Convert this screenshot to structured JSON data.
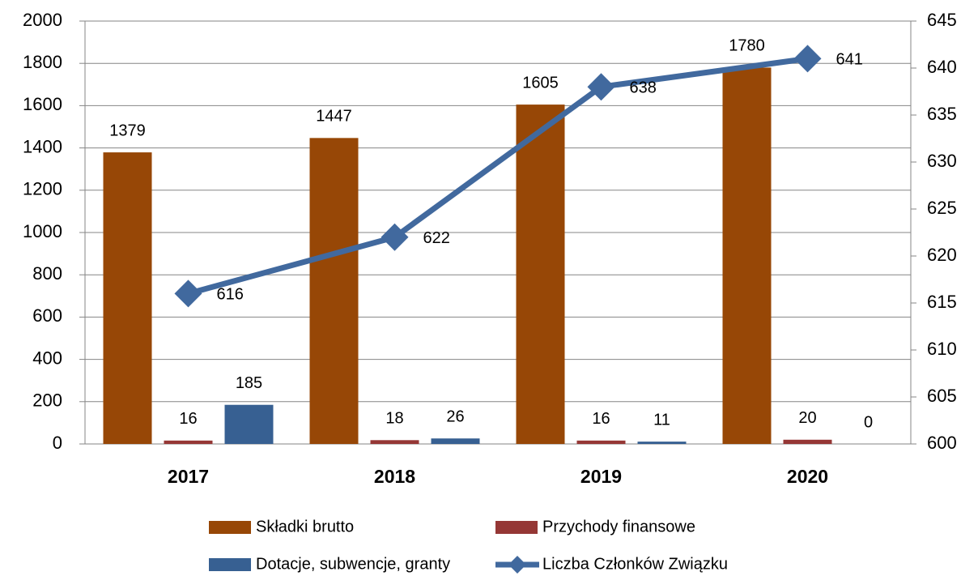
{
  "chart_data": {
    "type": "bar",
    "categories": [
      "2017",
      "2018",
      "2019",
      "2020"
    ],
    "series": [
      {
        "name": "Składki brutto",
        "color": "#974706",
        "values": [
          1379,
          1447,
          1605,
          1780
        ]
      },
      {
        "name": "Przychody finansowe",
        "color": "#953735",
        "values": [
          16,
          18,
          16,
          20
        ]
      },
      {
        "name": "Dotacje, subwencje, granty",
        "color": "#376092",
        "values": [
          185,
          26,
          11,
          0
        ]
      },
      {
        "name": "Liczba Członków Związku",
        "type": "line",
        "axis": "y2",
        "color": "#41699e",
        "values": [
          616,
          622,
          638,
          641
        ]
      }
    ],
    "ylim": [
      0,
      2000
    ],
    "yticks": [
      0,
      200,
      400,
      600,
      800,
      1000,
      1200,
      1400,
      1600,
      1800,
      2000
    ],
    "y2lim": [
      600,
      645
    ],
    "y2ticks": [
      600,
      605,
      610,
      615,
      620,
      625,
      630,
      635,
      640,
      645
    ],
    "grid": true,
    "legend": "bottom"
  }
}
